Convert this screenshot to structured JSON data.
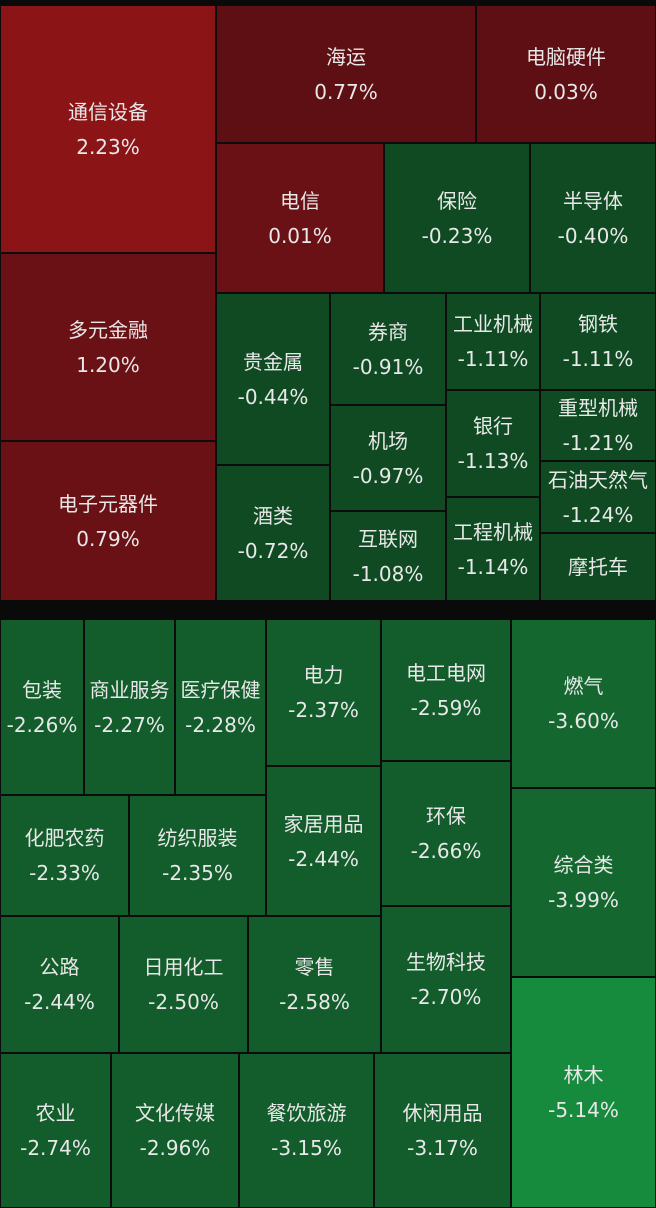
{
  "colors": {
    "strong_red": "#8b1416",
    "dark_red": "#6a1115",
    "deep_red": "#5e0f14",
    "dark_green": "#0f4a22",
    "mid_green": "#135c2b",
    "green": "#14672f",
    "bright_green": "#168a3d"
  },
  "sectors": [
    {
      "name": "通信设备",
      "change": "2.23%"
    },
    {
      "name": "多元金融",
      "change": "1.20%"
    },
    {
      "name": "电子元器件",
      "change": "0.79%"
    },
    {
      "name": "海运",
      "change": "0.77%"
    },
    {
      "name": "电脑硬件",
      "change": "0.03%"
    },
    {
      "name": "电信",
      "change": "0.01%"
    },
    {
      "name": "保险",
      "change": "-0.23%"
    },
    {
      "name": "半导体",
      "change": "-0.40%"
    },
    {
      "name": "贵金属",
      "change": "-0.44%"
    },
    {
      "name": "酒类",
      "change": "-0.72%"
    },
    {
      "name": "券商",
      "change": "-0.91%"
    },
    {
      "name": "机场",
      "change": "-0.97%"
    },
    {
      "name": "互联网",
      "change": "-1.08%"
    },
    {
      "name": "工业机械",
      "change": "-1.11%"
    },
    {
      "name": "钢铁",
      "change": "-1.11%"
    },
    {
      "name": "银行",
      "change": "-1.13%"
    },
    {
      "name": "重型机械",
      "change": "-1.21%"
    },
    {
      "name": "石油天然气",
      "change": "-1.24%"
    },
    {
      "name": "工程机械",
      "change": "-1.14%"
    },
    {
      "name": "摩托车",
      "change": ""
    },
    {
      "name": "包装",
      "change": "-2.26%"
    },
    {
      "name": "商业服务",
      "change": "-2.27%"
    },
    {
      "name": "医疗保健",
      "change": "-2.28%"
    },
    {
      "name": "电力",
      "change": "-2.37%"
    },
    {
      "name": "电工电网",
      "change": "-2.59%"
    },
    {
      "name": "燃气",
      "change": "-3.60%"
    },
    {
      "name": "化肥农药",
      "change": "-2.33%"
    },
    {
      "name": "纺织服装",
      "change": "-2.35%"
    },
    {
      "name": "家居用品",
      "change": "-2.44%"
    },
    {
      "name": "环保",
      "change": "-2.66%"
    },
    {
      "name": "综合类",
      "change": "-3.99%"
    },
    {
      "name": "公路",
      "change": "-2.44%"
    },
    {
      "name": "日用化工",
      "change": "-2.50%"
    },
    {
      "name": "零售",
      "change": "-2.58%"
    },
    {
      "name": "生物科技",
      "change": "-2.70%"
    },
    {
      "name": "林木",
      "change": "-5.14%"
    },
    {
      "name": "农业",
      "change": "-2.74%"
    },
    {
      "name": "文化传媒",
      "change": "-2.96%"
    },
    {
      "name": "餐饮旅游",
      "change": "-3.15%"
    },
    {
      "name": "休闲用品",
      "change": "-3.17%"
    }
  ]
}
